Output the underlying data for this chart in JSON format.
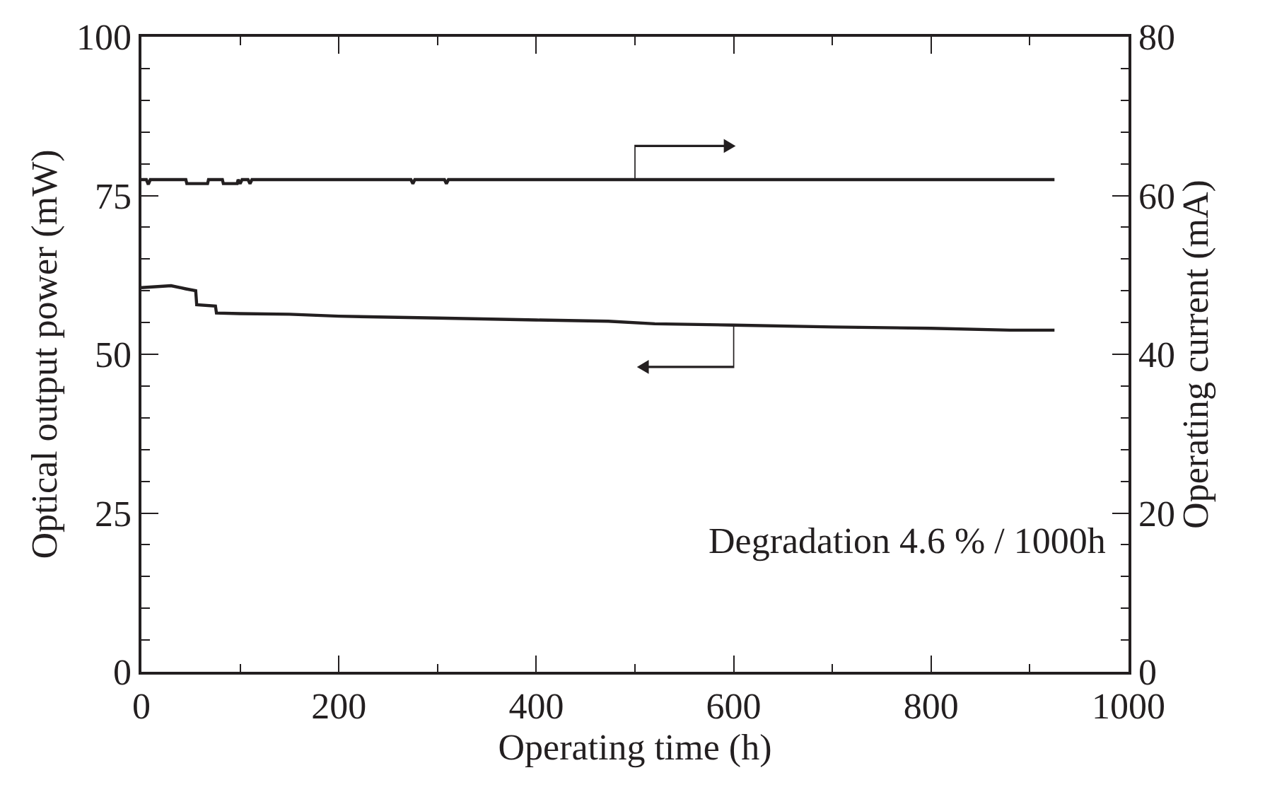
{
  "chart_data": {
    "type": "line",
    "xlabel": "Operating time (h)",
    "ylabel": "Optical output power (mW)",
    "y2label": "Operating current (mA)",
    "xlim": [
      0,
      1000
    ],
    "xticks": [
      0,
      200,
      400,
      600,
      800,
      1000
    ],
    "ylim": [
      0,
      100
    ],
    "yticks": [
      0,
      25,
      50,
      75,
      100
    ],
    "y2lim": [
      0,
      80
    ],
    "y2ticks": [
      0,
      20,
      40,
      60,
      80
    ],
    "marker": "none",
    "line_style": "solid",
    "annotations": [
      "Degradation 4.6 % / 1000h"
    ],
    "series": [
      {
        "color": "#231f20",
        "x": [
          0,
          30,
          45,
          55,
          56,
          75,
          76,
          100,
          150,
          200,
          300,
          400,
          473,
          520,
          600,
          700,
          800,
          880,
          925
        ],
        "values": [
          60.5,
          60.8,
          60.3,
          60.0,
          57.8,
          57.6,
          56.5,
          56.4,
          56.3,
          56.0,
          55.7,
          55.4,
          55.2,
          54.8,
          54.6,
          54.3,
          54.1,
          53.8,
          53.8
        ]
      },
      {
        "color": "#231f20",
        "axis": "y2",
        "x": [
          0,
          5,
          7,
          9,
          45,
          46,
          67,
          68,
          82,
          83,
          97,
          98,
          100,
          102,
          108,
          110,
          112,
          273,
          275,
          277,
          307,
          309,
          311,
          925
        ],
        "values": [
          62,
          62,
          61.4,
          62,
          62,
          61.5,
          61.5,
          62,
          62,
          61.5,
          61.5,
          62,
          61.5,
          62,
          62,
          61.5,
          62,
          62,
          61.5,
          62,
          62,
          61.5,
          62,
          62
        ]
      }
    ]
  }
}
